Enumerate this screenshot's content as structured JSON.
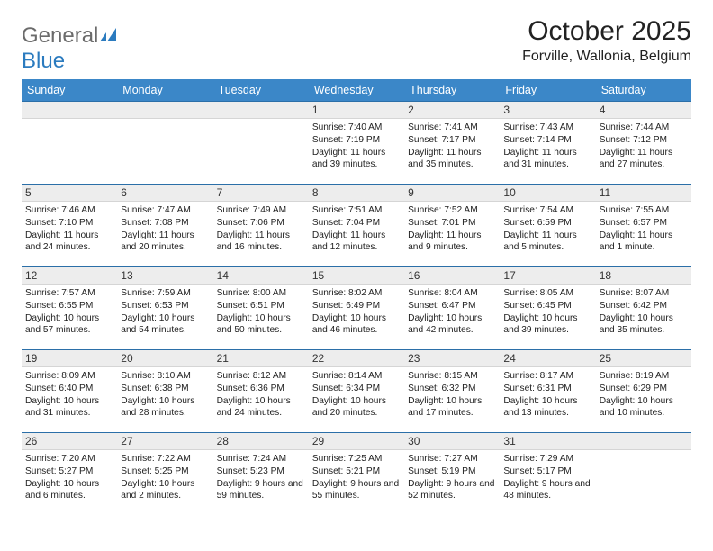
{
  "logo": {
    "text1": "General",
    "text2": "Blue"
  },
  "title": "October 2025",
  "location": "Forville, Wallonia, Belgium",
  "colors": {
    "header_bg": "#3b87c8",
    "header_text": "#ffffff",
    "daynum_bg": "#ededed",
    "border_top": "#2b6fa8",
    "logo_gray": "#6b6b6b",
    "logo_blue": "#2b7bbf"
  },
  "day_labels": [
    "Sunday",
    "Monday",
    "Tuesday",
    "Wednesday",
    "Thursday",
    "Friday",
    "Saturday"
  ],
  "weeks": [
    [
      {
        "n": "",
        "sr": "",
        "ss": "",
        "dl": ""
      },
      {
        "n": "",
        "sr": "",
        "ss": "",
        "dl": ""
      },
      {
        "n": "",
        "sr": "",
        "ss": "",
        "dl": ""
      },
      {
        "n": "1",
        "sr": "Sunrise: 7:40 AM",
        "ss": "Sunset: 7:19 PM",
        "dl": "Daylight: 11 hours and 39 minutes."
      },
      {
        "n": "2",
        "sr": "Sunrise: 7:41 AM",
        "ss": "Sunset: 7:17 PM",
        "dl": "Daylight: 11 hours and 35 minutes."
      },
      {
        "n": "3",
        "sr": "Sunrise: 7:43 AM",
        "ss": "Sunset: 7:14 PM",
        "dl": "Daylight: 11 hours and 31 minutes."
      },
      {
        "n": "4",
        "sr": "Sunrise: 7:44 AM",
        "ss": "Sunset: 7:12 PM",
        "dl": "Daylight: 11 hours and 27 minutes."
      }
    ],
    [
      {
        "n": "5",
        "sr": "Sunrise: 7:46 AM",
        "ss": "Sunset: 7:10 PM",
        "dl": "Daylight: 11 hours and 24 minutes."
      },
      {
        "n": "6",
        "sr": "Sunrise: 7:47 AM",
        "ss": "Sunset: 7:08 PM",
        "dl": "Daylight: 11 hours and 20 minutes."
      },
      {
        "n": "7",
        "sr": "Sunrise: 7:49 AM",
        "ss": "Sunset: 7:06 PM",
        "dl": "Daylight: 11 hours and 16 minutes."
      },
      {
        "n": "8",
        "sr": "Sunrise: 7:51 AM",
        "ss": "Sunset: 7:04 PM",
        "dl": "Daylight: 11 hours and 12 minutes."
      },
      {
        "n": "9",
        "sr": "Sunrise: 7:52 AM",
        "ss": "Sunset: 7:01 PM",
        "dl": "Daylight: 11 hours and 9 minutes."
      },
      {
        "n": "10",
        "sr": "Sunrise: 7:54 AM",
        "ss": "Sunset: 6:59 PM",
        "dl": "Daylight: 11 hours and 5 minutes."
      },
      {
        "n": "11",
        "sr": "Sunrise: 7:55 AM",
        "ss": "Sunset: 6:57 PM",
        "dl": "Daylight: 11 hours and 1 minute."
      }
    ],
    [
      {
        "n": "12",
        "sr": "Sunrise: 7:57 AM",
        "ss": "Sunset: 6:55 PM",
        "dl": "Daylight: 10 hours and 57 minutes."
      },
      {
        "n": "13",
        "sr": "Sunrise: 7:59 AM",
        "ss": "Sunset: 6:53 PM",
        "dl": "Daylight: 10 hours and 54 minutes."
      },
      {
        "n": "14",
        "sr": "Sunrise: 8:00 AM",
        "ss": "Sunset: 6:51 PM",
        "dl": "Daylight: 10 hours and 50 minutes."
      },
      {
        "n": "15",
        "sr": "Sunrise: 8:02 AM",
        "ss": "Sunset: 6:49 PM",
        "dl": "Daylight: 10 hours and 46 minutes."
      },
      {
        "n": "16",
        "sr": "Sunrise: 8:04 AM",
        "ss": "Sunset: 6:47 PM",
        "dl": "Daylight: 10 hours and 42 minutes."
      },
      {
        "n": "17",
        "sr": "Sunrise: 8:05 AM",
        "ss": "Sunset: 6:45 PM",
        "dl": "Daylight: 10 hours and 39 minutes."
      },
      {
        "n": "18",
        "sr": "Sunrise: 8:07 AM",
        "ss": "Sunset: 6:42 PM",
        "dl": "Daylight: 10 hours and 35 minutes."
      }
    ],
    [
      {
        "n": "19",
        "sr": "Sunrise: 8:09 AM",
        "ss": "Sunset: 6:40 PM",
        "dl": "Daylight: 10 hours and 31 minutes."
      },
      {
        "n": "20",
        "sr": "Sunrise: 8:10 AM",
        "ss": "Sunset: 6:38 PM",
        "dl": "Daylight: 10 hours and 28 minutes."
      },
      {
        "n": "21",
        "sr": "Sunrise: 8:12 AM",
        "ss": "Sunset: 6:36 PM",
        "dl": "Daylight: 10 hours and 24 minutes."
      },
      {
        "n": "22",
        "sr": "Sunrise: 8:14 AM",
        "ss": "Sunset: 6:34 PM",
        "dl": "Daylight: 10 hours and 20 minutes."
      },
      {
        "n": "23",
        "sr": "Sunrise: 8:15 AM",
        "ss": "Sunset: 6:32 PM",
        "dl": "Daylight: 10 hours and 17 minutes."
      },
      {
        "n": "24",
        "sr": "Sunrise: 8:17 AM",
        "ss": "Sunset: 6:31 PM",
        "dl": "Daylight: 10 hours and 13 minutes."
      },
      {
        "n": "25",
        "sr": "Sunrise: 8:19 AM",
        "ss": "Sunset: 6:29 PM",
        "dl": "Daylight: 10 hours and 10 minutes."
      }
    ],
    [
      {
        "n": "26",
        "sr": "Sunrise: 7:20 AM",
        "ss": "Sunset: 5:27 PM",
        "dl": "Daylight: 10 hours and 6 minutes."
      },
      {
        "n": "27",
        "sr": "Sunrise: 7:22 AM",
        "ss": "Sunset: 5:25 PM",
        "dl": "Daylight: 10 hours and 2 minutes."
      },
      {
        "n": "28",
        "sr": "Sunrise: 7:24 AM",
        "ss": "Sunset: 5:23 PM",
        "dl": "Daylight: 9 hours and 59 minutes."
      },
      {
        "n": "29",
        "sr": "Sunrise: 7:25 AM",
        "ss": "Sunset: 5:21 PM",
        "dl": "Daylight: 9 hours and 55 minutes."
      },
      {
        "n": "30",
        "sr": "Sunrise: 7:27 AM",
        "ss": "Sunset: 5:19 PM",
        "dl": "Daylight: 9 hours and 52 minutes."
      },
      {
        "n": "31",
        "sr": "Sunrise: 7:29 AM",
        "ss": "Sunset: 5:17 PM",
        "dl": "Daylight: 9 hours and 48 minutes."
      },
      {
        "n": "",
        "sr": "",
        "ss": "",
        "dl": ""
      }
    ]
  ]
}
